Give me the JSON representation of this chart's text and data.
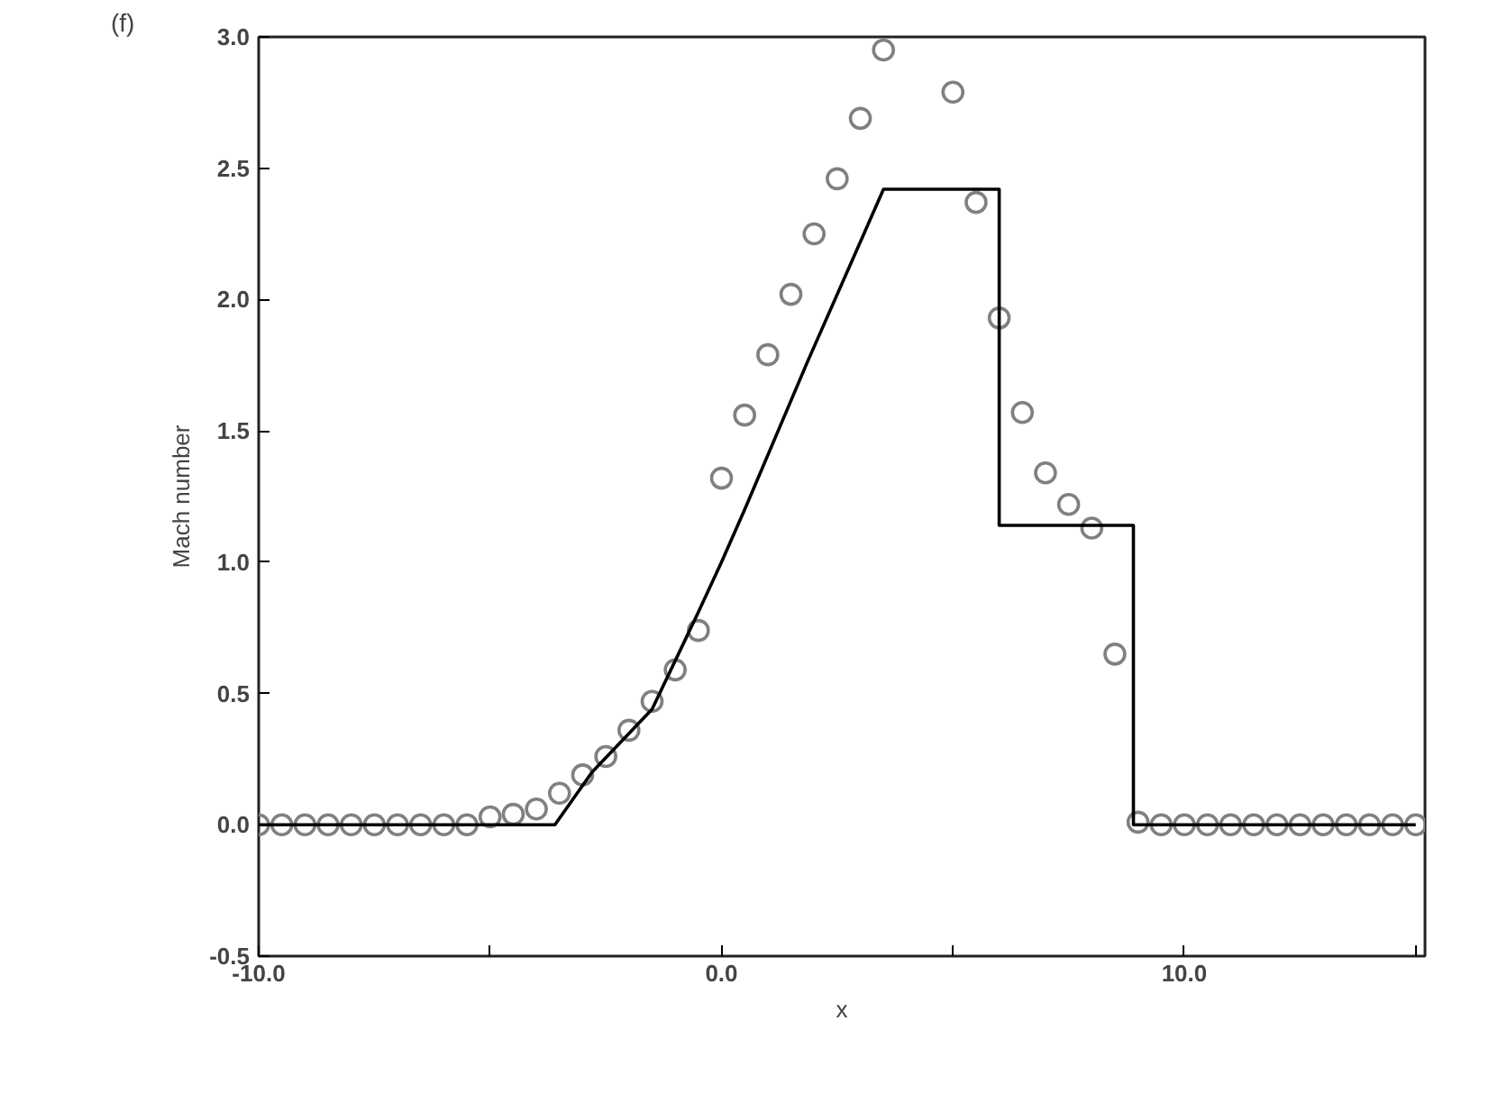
{
  "chart_data": {
    "type": "scatter",
    "xlabel": "x",
    "ylabel": "Mach number",
    "annotations": [
      "(f)"
    ],
    "xlim": [
      -10,
      15.2
    ],
    "ylim": [
      -0.5,
      3.0
    ],
    "xticks": [
      {
        "value": -10,
        "label": "-10.0"
      },
      {
        "value": -5,
        "label": null
      },
      {
        "value": 0,
        "label": "0.0"
      },
      {
        "value": 5,
        "label": null
      },
      {
        "value": 10,
        "label": "10.0"
      },
      {
        "value": 15,
        "label": null
      }
    ],
    "yticks": [
      {
        "value": -0.5,
        "label": "-0.5"
      },
      {
        "value": 0,
        "label": "0.0"
      },
      {
        "value": 0.5,
        "label": "0.5"
      },
      {
        "value": 1,
        "label": "1.0"
      },
      {
        "value": 1.5,
        "label": "1.5"
      },
      {
        "value": 2,
        "label": "2.0"
      },
      {
        "value": 2.5,
        "label": "2.5"
      },
      {
        "value": 3,
        "label": "3.0"
      }
    ],
    "grid": false,
    "series": [
      {
        "marker": "circle",
        "color": "#808080",
        "x": [
          -10,
          -9.5,
          -9,
          -8.5,
          -8,
          -7.5,
          -7,
          -6.5,
          -6,
          -5.5,
          -5,
          -4.5,
          -4,
          -3.5,
          -3,
          -2.5,
          -2,
          -1.5,
          -1,
          -0.5,
          0,
          0.5,
          1,
          1.5,
          2,
          2.5,
          3,
          3.5,
          5,
          5.5,
          6,
          6.5,
          7,
          7.5,
          8,
          8.5,
          9,
          9.5,
          10,
          10.5,
          11,
          11.5,
          12,
          12.5,
          13,
          13.5,
          14,
          14.5,
          15
        ],
        "values": [
          0,
          0,
          0,
          0,
          0,
          0,
          0,
          0,
          0,
          0,
          0.03,
          0.04,
          0.06,
          0.12,
          0.19,
          0.26,
          0.36,
          0.47,
          0.59,
          0.74,
          1.32,
          1.56,
          1.79,
          2.02,
          2.25,
          2.46,
          2.69,
          2.95,
          2.79,
          2.37,
          1.93,
          1.57,
          1.34,
          1.22,
          1.13,
          0.65,
          0.01,
          0,
          0,
          0,
          0,
          0,
          0,
          0,
          0,
          0,
          0,
          0,
          0
        ]
      },
      {
        "type": "line",
        "marker": "none",
        "line_style": "solid",
        "color": "#000000",
        "x": [
          -10,
          -3.6,
          -2.8,
          -1.5,
          -0.5,
          0,
          0.5,
          1.85,
          3.1,
          3.5,
          6.0,
          6.0,
          8.9,
          8.9,
          15
        ],
        "values": [
          0,
          0,
          0.2,
          0.44,
          0.81,
          1.0,
          1.2,
          1.76,
          2.26,
          2.42,
          2.42,
          1.14,
          1.14,
          0,
          0
        ]
      }
    ]
  }
}
